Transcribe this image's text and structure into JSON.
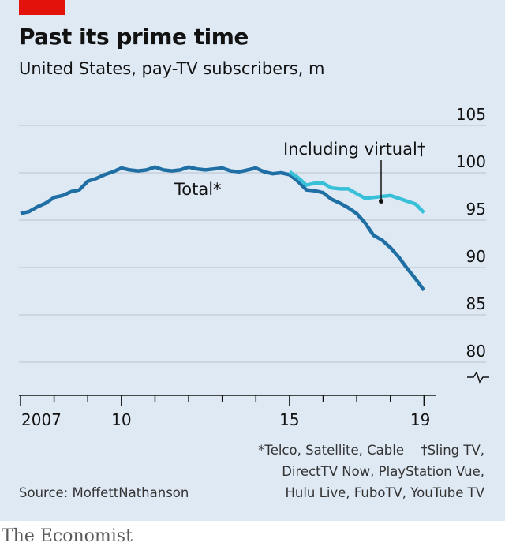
{
  "header": {
    "title": "Past its prime time",
    "subtitle": "United States, pay-TV subscribers, m"
  },
  "colors": {
    "background": "#dfe9f3",
    "accent_red": "#e3120b",
    "total_line": "#1f6fa5",
    "virtual_line": "#38c0d8",
    "grid": "#b7c4cf",
    "text": "#121212"
  },
  "chart_data": {
    "type": "line",
    "title": "Past its prime time",
    "subtitle": "United States, pay-TV subscribers, m",
    "xlabel": "",
    "ylabel": "",
    "ylim": [
      80,
      105
    ],
    "xlim": [
      2007,
      2019.25
    ],
    "y_ticks": [
      "80",
      "85",
      "90",
      "95",
      "100",
      "105"
    ],
    "y_tick_values": [
      80,
      85,
      90,
      95,
      100,
      105
    ],
    "x_tick_labels": [
      "2007",
      "10",
      "15",
      "19"
    ],
    "x_tick_label_years": [
      2007,
      2010,
      2015,
      2019
    ],
    "axis_break": true,
    "series": [
      {
        "name": "Total*",
        "label": "Total*",
        "x": [
          2007,
          2007.25,
          2007.5,
          2007.75,
          2008,
          2008.25,
          2008.5,
          2008.75,
          2009,
          2009.25,
          2009.5,
          2009.75,
          2010,
          2010.25,
          2010.5,
          2010.75,
          2011,
          2011.25,
          2011.5,
          2011.75,
          2012,
          2012.25,
          2012.5,
          2012.75,
          2013,
          2013.25,
          2013.5,
          2013.75,
          2014,
          2014.25,
          2014.5,
          2014.75,
          2015,
          2015.25,
          2015.5,
          2015.75,
          2016,
          2016.25,
          2016.5,
          2016.75,
          2017,
          2017.25,
          2017.5,
          2017.75,
          2018,
          2018.25,
          2018.5,
          2018.75,
          2019
        ],
        "values": [
          95.7,
          95.9,
          96.4,
          96.8,
          97.4,
          97.6,
          98.0,
          98.2,
          99.1,
          99.4,
          99.8,
          100.1,
          100.5,
          100.3,
          100.2,
          100.3,
          100.6,
          100.3,
          100.2,
          100.3,
          100.6,
          100.4,
          100.3,
          100.4,
          100.5,
          100.2,
          100.1,
          100.3,
          100.5,
          100.1,
          99.9,
          100.0,
          99.8,
          99.1,
          98.2,
          98.1,
          97.9,
          97.2,
          96.8,
          96.3,
          95.7,
          94.7,
          93.4,
          92.9,
          92.1,
          91.1,
          89.9,
          88.8,
          87.6
        ]
      },
      {
        "name": "Including virtual†",
        "label": "Including virtual†",
        "x": [
          2015,
          2015.25,
          2015.5,
          2015.75,
          2016,
          2016.25,
          2016.5,
          2016.75,
          2017,
          2017.25,
          2017.5,
          2017.75,
          2018,
          2018.25,
          2018.5,
          2018.75,
          2019
        ],
        "values": [
          100.1,
          99.5,
          98.7,
          98.9,
          98.9,
          98.4,
          98.3,
          98.3,
          97.8,
          97.3,
          97.4,
          97.5,
          97.6,
          97.3,
          97.0,
          96.7,
          95.8
        ]
      }
    ]
  },
  "footnotes": {
    "total": "*Telco, Satellite, Cable",
    "virtual_line1": "†Sling TV,",
    "virtual_line2": "DirectTV Now, PlayStation Vue,",
    "virtual_line3": "Hulu Live, FuboTV, YouTube TV"
  },
  "source": "Source: MoffettNathanson",
  "brand": "The Economist"
}
